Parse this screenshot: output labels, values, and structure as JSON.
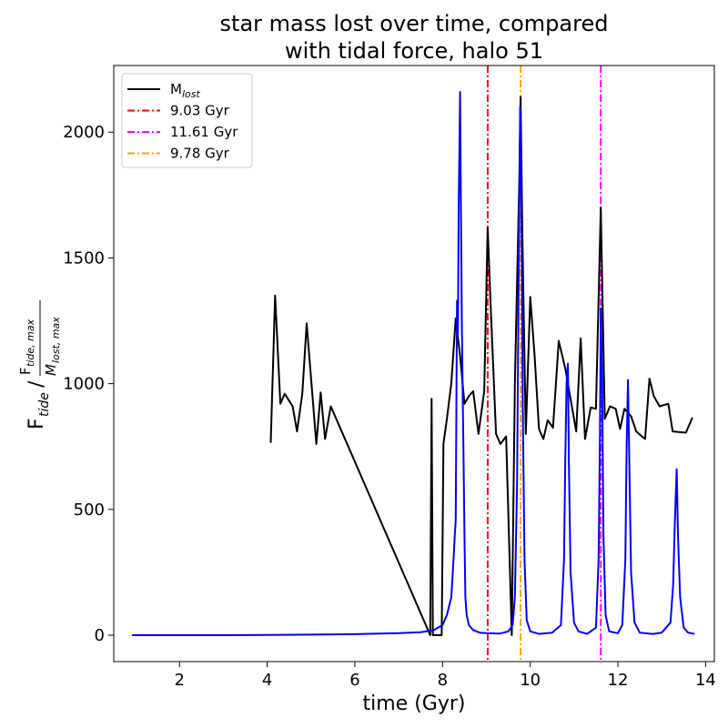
{
  "chart_data": {
    "type": "line",
    "title_lines": [
      "star mass lost over time, compared",
      "with tidal force, halo 51"
    ],
    "xlabel": "time (Gyr)",
    "ylabel": "F",
    "xlim": [
      0.5,
      14.2
    ],
    "ylim": [
      -105,
      2265
    ],
    "xticks": [
      2,
      4,
      6,
      8,
      10,
      12,
      14
    ],
    "yticks": [
      0,
      500,
      1000,
      1500,
      2000
    ],
    "xtick_labels": [
      "2",
      "4",
      "6",
      "8",
      "10",
      "12",
      "14"
    ],
    "ytick_labels": [
      "0",
      "500",
      "1000",
      "1500",
      "2000"
    ],
    "legend": {
      "placement": "upper-left",
      "entries": [
        {
          "label": "M",
          "subscript": "lost",
          "color": "#000000",
          "style": "solid"
        },
        {
          "label": "9.03 Gyr",
          "color": "#ff0000",
          "style": "dashdot"
        },
        {
          "label": "11.61 Gyr",
          "color": "#ff00ff",
          "style": "dashdot"
        },
        {
          "label": "9.78 Gyr",
          "color": "#ffa500",
          "style": "dashdot"
        }
      ]
    },
    "vlines": [
      {
        "x": 9.03,
        "color": "#ff0000"
      },
      {
        "x": 9.78,
        "color": "#ffa500"
      },
      {
        "x": 11.61,
        "color": "#ff00ff"
      }
    ],
    "series": [
      {
        "name": "M_lost",
        "color": "#000000",
        "points": [
          [
            4.08,
            765
          ],
          [
            4.18,
            1350
          ],
          [
            4.3,
            920
          ],
          [
            4.4,
            960
          ],
          [
            4.58,
            910
          ],
          [
            4.68,
            810
          ],
          [
            4.8,
            960
          ],
          [
            4.9,
            1240
          ],
          [
            5.12,
            760
          ],
          [
            5.22,
            965
          ],
          [
            5.32,
            780
          ],
          [
            5.45,
            910
          ],
          [
            7.72,
            0
          ],
          [
            7.75,
            940
          ],
          [
            7.78,
            0
          ],
          [
            7.98,
            0
          ],
          [
            8.02,
            760
          ],
          [
            8.1,
            860
          ],
          [
            8.2,
            1000
          ],
          [
            8.3,
            1260
          ],
          [
            8.4,
            1110
          ],
          [
            8.5,
            920
          ],
          [
            8.6,
            950
          ],
          [
            8.7,
            970
          ],
          [
            8.82,
            800
          ],
          [
            8.95,
            970
          ],
          [
            9.03,
            1620
          ],
          [
            9.1,
            1300
          ],
          [
            9.22,
            800
          ],
          [
            9.32,
            760
          ],
          [
            9.45,
            790
          ],
          [
            9.58,
            0
          ],
          [
            9.65,
            1000
          ],
          [
            9.75,
            1800
          ],
          [
            9.78,
            2140
          ],
          [
            9.82,
            1600
          ],
          [
            9.9,
            800
          ],
          [
            10.0,
            1345
          ],
          [
            10.1,
            1110
          ],
          [
            10.2,
            820
          ],
          [
            10.3,
            780
          ],
          [
            10.4,
            855
          ],
          [
            10.52,
            825
          ],
          [
            10.65,
            1170
          ],
          [
            10.8,
            1060
          ],
          [
            10.9,
            960
          ],
          [
            11.05,
            810
          ],
          [
            11.15,
            1180
          ],
          [
            11.25,
            780
          ],
          [
            11.38,
            905
          ],
          [
            11.5,
            900
          ],
          [
            11.61,
            1700
          ],
          [
            11.7,
            860
          ],
          [
            11.82,
            910
          ],
          [
            11.95,
            900
          ],
          [
            12.05,
            820
          ],
          [
            12.15,
            900
          ],
          [
            12.3,
            870
          ],
          [
            12.42,
            810
          ],
          [
            12.55,
            790
          ],
          [
            12.62,
            780
          ],
          [
            12.72,
            1020
          ],
          [
            12.82,
            950
          ],
          [
            12.95,
            910
          ],
          [
            13.15,
            920
          ],
          [
            13.25,
            810
          ],
          [
            13.55,
            805
          ],
          [
            13.7,
            865
          ]
        ]
      },
      {
        "name": "",
        "color": "#0000ff",
        "points": [
          [
            0.92,
            0
          ],
          [
            3.0,
            0
          ],
          [
            5.0,
            2
          ],
          [
            6.0,
            4
          ],
          [
            7.0,
            8
          ],
          [
            7.5,
            12
          ],
          [
            7.8,
            20
          ],
          [
            8.0,
            40
          ],
          [
            8.1,
            80
          ],
          [
            8.2,
            150
          ],
          [
            8.25,
            300
          ],
          [
            8.28,
            400
          ],
          [
            8.3,
            460
          ],
          [
            8.33,
            1330
          ],
          [
            8.35,
            1200
          ],
          [
            8.37,
            1720
          ],
          [
            8.4,
            2160
          ],
          [
            8.42,
            1700
          ],
          [
            8.44,
            1250
          ],
          [
            8.46,
            950
          ],
          [
            8.48,
            700
          ],
          [
            8.5,
            400
          ],
          [
            8.52,
            150
          ],
          [
            8.55,
            80
          ],
          [
            8.6,
            40
          ],
          [
            8.7,
            20
          ],
          [
            8.85,
            10
          ],
          [
            9.0,
            8
          ],
          [
            9.3,
            6
          ],
          [
            9.5,
            15
          ],
          [
            9.6,
            40
          ],
          [
            9.65,
            150
          ],
          [
            9.7,
            600
          ],
          [
            9.74,
            1500
          ],
          [
            9.77,
            2100
          ],
          [
            9.8,
            1700
          ],
          [
            9.83,
            900
          ],
          [
            9.87,
            300
          ],
          [
            9.92,
            60
          ],
          [
            10.0,
            15
          ],
          [
            10.2,
            5
          ],
          [
            10.5,
            10
          ],
          [
            10.7,
            40
          ],
          [
            10.77,
            300
          ],
          [
            10.8,
            700
          ],
          [
            10.83,
            1000
          ],
          [
            10.86,
            1080
          ],
          [
            10.88,
            700
          ],
          [
            10.92,
            250
          ],
          [
            11.0,
            50
          ],
          [
            11.1,
            15
          ],
          [
            11.3,
            5
          ],
          [
            11.5,
            30
          ],
          [
            11.56,
            300
          ],
          [
            11.59,
            800
          ],
          [
            11.61,
            1300
          ],
          [
            11.64,
            1000
          ],
          [
            11.67,
            400
          ],
          [
            11.72,
            80
          ],
          [
            11.8,
            15
          ],
          [
            12.0,
            8
          ],
          [
            12.1,
            40
          ],
          [
            12.17,
            300
          ],
          [
            12.2,
            750
          ],
          [
            12.23,
            1015
          ],
          [
            12.26,
            700
          ],
          [
            12.3,
            250
          ],
          [
            12.38,
            50
          ],
          [
            12.5,
            10
          ],
          [
            12.8,
            5
          ],
          [
            13.0,
            10
          ],
          [
            13.2,
            50
          ],
          [
            13.26,
            200
          ],
          [
            13.3,
            450
          ],
          [
            13.34,
            660
          ],
          [
            13.37,
            400
          ],
          [
            13.42,
            150
          ],
          [
            13.5,
            30
          ],
          [
            13.6,
            10
          ],
          [
            13.75,
            5
          ]
        ]
      }
    ]
  }
}
